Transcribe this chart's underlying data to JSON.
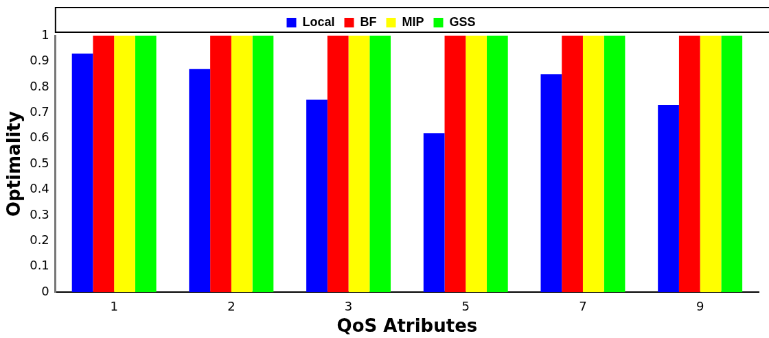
{
  "chart_data": {
    "type": "bar",
    "xlabel": "QoS Atributes",
    "ylabel": "Optimality",
    "categories": [
      "1",
      "2",
      "3",
      "5",
      "7",
      "9"
    ],
    "series": [
      {
        "name": "Local",
        "color": "#0000ff",
        "values": [
          0.93,
          0.87,
          0.75,
          0.62,
          0.85,
          0.73
        ]
      },
      {
        "name": "BF",
        "color": "#ff0000",
        "values": [
          1,
          1,
          1,
          1,
          1,
          1
        ]
      },
      {
        "name": "MIP",
        "color": "#ffff00",
        "values": [
          1,
          1,
          1,
          1,
          1,
          1
        ]
      },
      {
        "name": "GSS",
        "color": "#00ff00",
        "values": [
          1,
          1,
          1,
          1,
          1,
          1
        ]
      }
    ],
    "ylim": [
      0,
      1
    ],
    "yticks": [
      0,
      0.1,
      0.2,
      0.3,
      0.4,
      0.5,
      0.6,
      0.7,
      0.8,
      0.9,
      1
    ],
    "grid": false,
    "legend": "top"
  }
}
